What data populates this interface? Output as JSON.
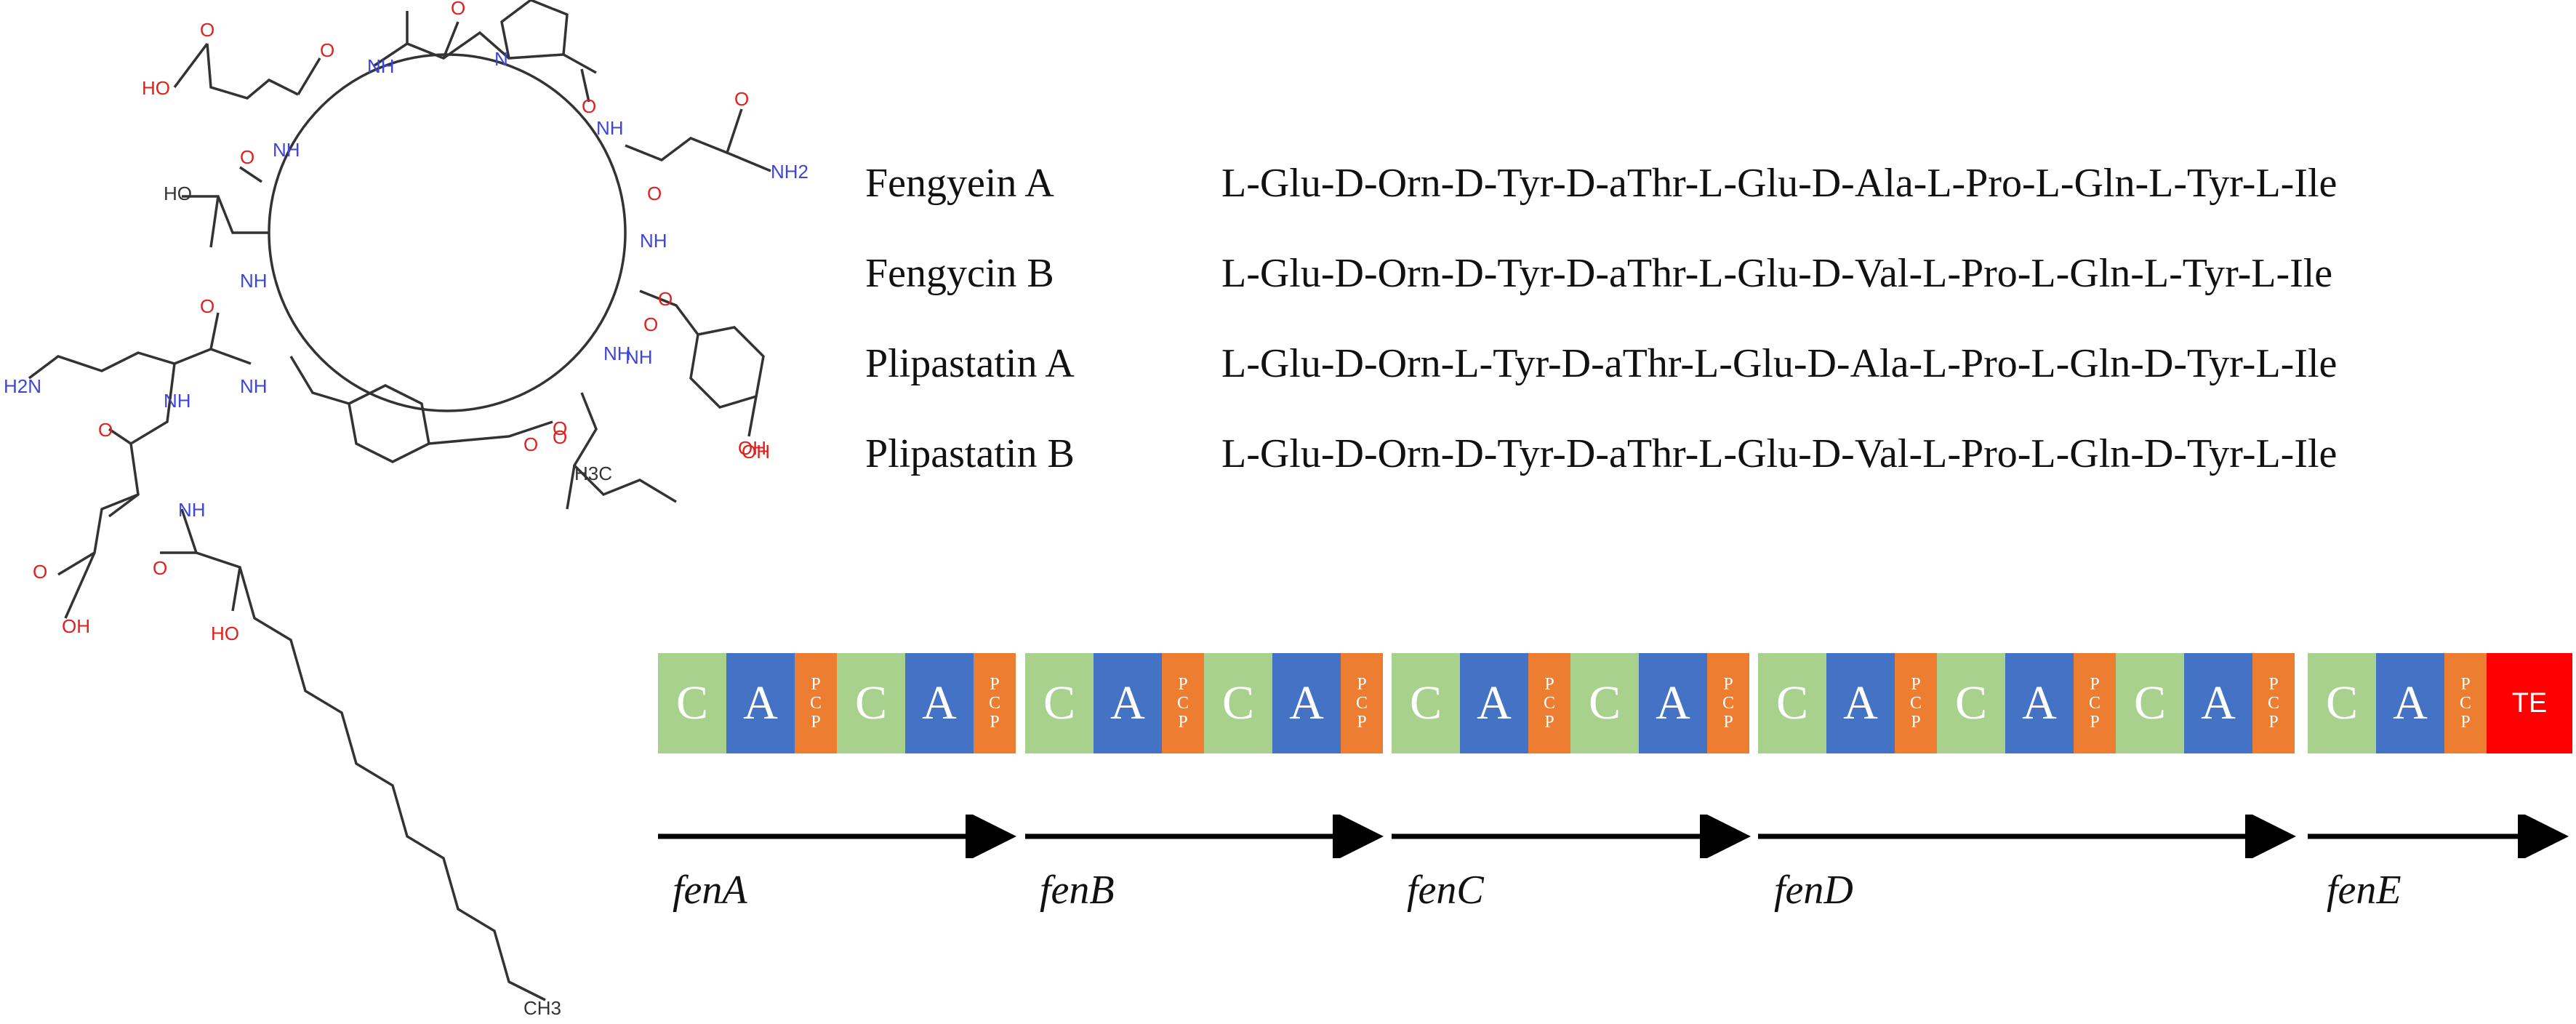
{
  "molecule": {
    "atom_labels": [
      "HO",
      "O",
      "O",
      "O",
      "NH",
      "NH",
      "O",
      "O",
      "N",
      "O",
      "NH",
      "O",
      "NH2",
      "NH",
      "HO",
      "NH",
      "O",
      "O",
      "NH",
      "O",
      "NH",
      "NH",
      "H2N",
      "O",
      "NH",
      "O",
      "NH",
      "O",
      "O",
      "OH",
      "O",
      "OH",
      "HO",
      "O",
      "CH3",
      "H3C",
      "OH"
    ]
  },
  "peptides": [
    {
      "name": "Fengyein  A",
      "sequence": "L-Glu-D-Orn-D-Tyr-D-aThr-L-Glu-D-Ala-L-Pro-L-Gln-L-Tyr-L-Ile"
    },
    {
      "name": "Fengycin  B",
      "sequence": "L-Glu-D-Orn-D-Tyr-D-aThr-L-Glu-D-Val-L-Pro-L-Gln-L-Tyr-L-Ile"
    },
    {
      "name": "Plipastatin  A",
      "sequence": "L-Glu-D-Orn-L-Tyr-D-aThr-L-Glu-D-Ala-L-Pro-L-Gln-D-Tyr-L-Ile"
    },
    {
      "name": "Plipastatin  B",
      "sequence": "L-Glu-D-Orn-D-Tyr-D-aThr-L-Glu-D-Val-L-Pro-L-Gln-D-Tyr-L-Ile"
    }
  ],
  "genes": [
    {
      "name": "fenA",
      "domains": [
        {
          "type": "C",
          "label": "C"
        },
        {
          "type": "A",
          "label": "A"
        },
        {
          "type": "PCP",
          "label": [
            "P",
            "C",
            "P"
          ]
        },
        {
          "type": "C",
          "label": "C"
        },
        {
          "type": "A",
          "label": "A"
        },
        {
          "type": "PCP",
          "label": [
            "P",
            "C",
            "P"
          ]
        }
      ]
    },
    {
      "name": "fenB",
      "domains": [
        {
          "type": "C",
          "label": "C"
        },
        {
          "type": "A",
          "label": "A"
        },
        {
          "type": "PCP",
          "label": [
            "P",
            "C",
            "P"
          ]
        },
        {
          "type": "C",
          "label": "C"
        },
        {
          "type": "A",
          "label": "A"
        },
        {
          "type": "PCP",
          "label": [
            "P",
            "C",
            "P"
          ]
        }
      ]
    },
    {
      "name": "fenC",
      "domains": [
        {
          "type": "C",
          "label": "C"
        },
        {
          "type": "A",
          "label": "A"
        },
        {
          "type": "PCP",
          "label": [
            "P",
            "C",
            "P"
          ]
        },
        {
          "type": "C",
          "label": "C"
        },
        {
          "type": "A",
          "label": "A"
        },
        {
          "type": "PCP",
          "label": [
            "P",
            "C",
            "P"
          ]
        }
      ]
    },
    {
      "name": "fenD",
      "domains": [
        {
          "type": "C",
          "label": "C"
        },
        {
          "type": "A",
          "label": "A"
        },
        {
          "type": "PCP",
          "label": [
            "P",
            "C",
            "P"
          ]
        },
        {
          "type": "C",
          "label": "C"
        },
        {
          "type": "A",
          "label": "A"
        },
        {
          "type": "PCP",
          "label": [
            "P",
            "C",
            "P"
          ]
        },
        {
          "type": "C",
          "label": "C"
        },
        {
          "type": "A",
          "label": "A"
        },
        {
          "type": "PCP",
          "label": [
            "P",
            "C",
            "P"
          ]
        }
      ]
    },
    {
      "name": "fenE",
      "domains": [
        {
          "type": "C",
          "label": "C"
        },
        {
          "type": "A",
          "label": "A"
        },
        {
          "type": "PCP",
          "label": [
            "P",
            "C",
            "P"
          ]
        },
        {
          "type": "TE",
          "label": "TE"
        }
      ]
    }
  ],
  "colors": {
    "C": "#a9d18e",
    "A": "#4472c4",
    "PCP": "#ed7d31",
    "TE": "#ff0000",
    "nitrogen": "#3d46d6",
    "oxygen": "#e0201b",
    "bond": "#333333"
  }
}
